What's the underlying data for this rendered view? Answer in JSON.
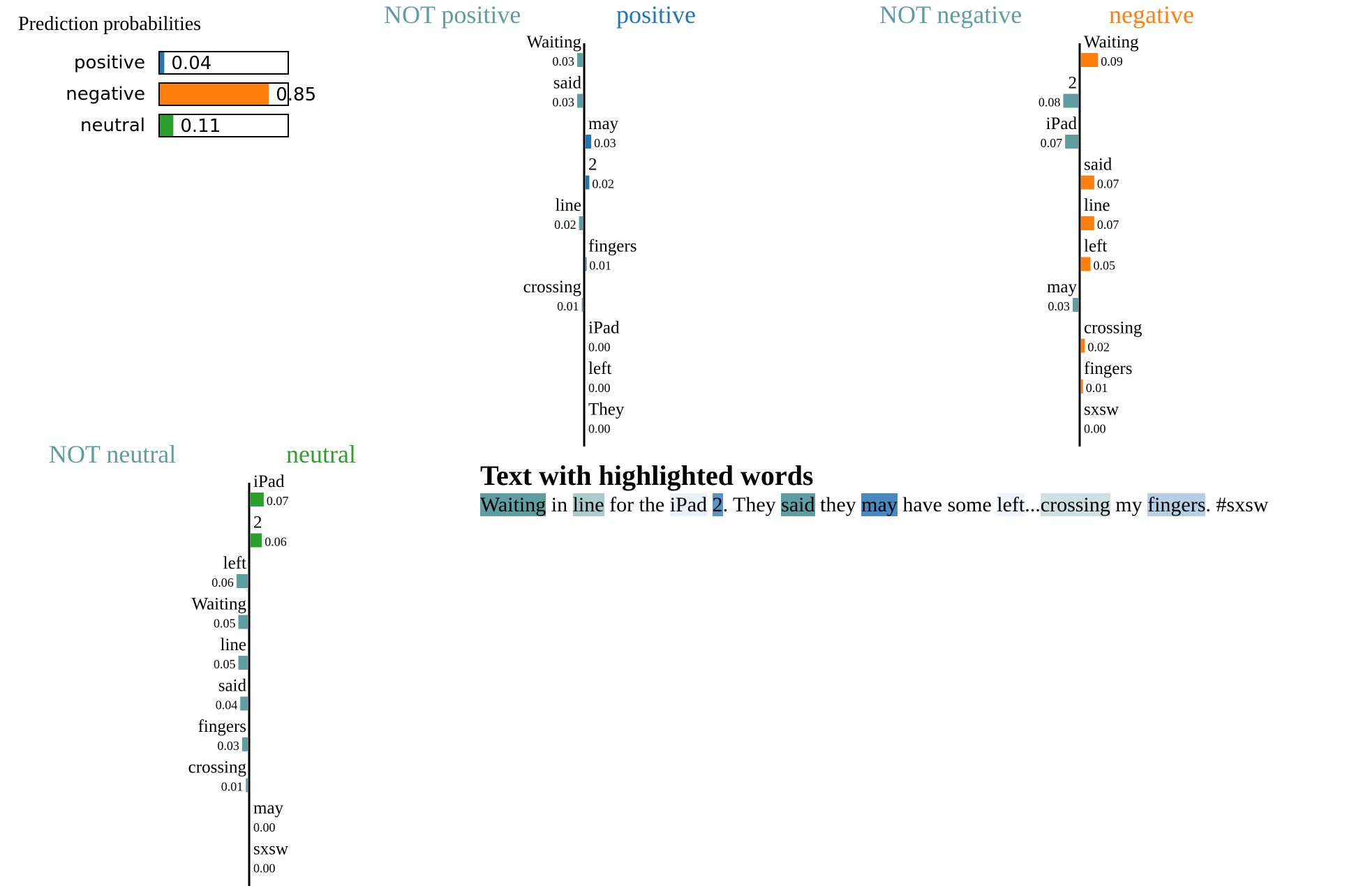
{
  "probabilities": {
    "title": "Prediction probabilities",
    "items": [
      {
        "label": "positive",
        "value": 0.04,
        "value_label": "0.04",
        "color": "#1f77b4"
      },
      {
        "label": "negative",
        "value": 0.85,
        "value_label": "0.85",
        "color": "#ff7f0e"
      },
      {
        "label": "neutral",
        "value": 0.11,
        "value_label": "0.11",
        "color": "#2ca02c"
      }
    ]
  },
  "chart_data": [
    {
      "type": "bar",
      "not_label": "NOT positive",
      "class_label": "positive",
      "not_color": "#5f9ea0",
      "class_color": "#1f77b4",
      "features": [
        {
          "word": "Waiting",
          "weight": -0.03,
          "label": "0.03"
        },
        {
          "word": "said",
          "weight": -0.03,
          "label": "0.03"
        },
        {
          "word": "may",
          "weight": 0.03,
          "label": "0.03"
        },
        {
          "word": "2",
          "weight": 0.02,
          "label": "0.02"
        },
        {
          "word": "line",
          "weight": -0.02,
          "label": "0.02"
        },
        {
          "word": "fingers",
          "weight": 0.005,
          "label": "0.01"
        },
        {
          "word": "crossing",
          "weight": -0.005,
          "label": "0.01"
        },
        {
          "word": "iPad",
          "weight": 0.0,
          "label": "0.00"
        },
        {
          "word": "left",
          "weight": 0.0,
          "label": "0.00"
        },
        {
          "word": "They",
          "weight": 0.0,
          "label": "0.00"
        }
      ]
    },
    {
      "type": "bar",
      "not_label": "NOT negative",
      "class_label": "negative",
      "not_color": "#5f9ea0",
      "class_color": "#ff7f0e",
      "features": [
        {
          "word": "Waiting",
          "weight": 0.09,
          "label": "0.09"
        },
        {
          "word": "2",
          "weight": -0.08,
          "label": "0.08"
        },
        {
          "word": "iPad",
          "weight": -0.07,
          "label": "0.07"
        },
        {
          "word": "said",
          "weight": 0.07,
          "label": "0.07"
        },
        {
          "word": "line",
          "weight": 0.07,
          "label": "0.07"
        },
        {
          "word": "left",
          "weight": 0.05,
          "label": "0.05"
        },
        {
          "word": "may",
          "weight": -0.03,
          "label": "0.03"
        },
        {
          "word": "crossing",
          "weight": 0.02,
          "label": "0.02"
        },
        {
          "word": "fingers",
          "weight": 0.01,
          "label": "0.01"
        },
        {
          "word": "sxsw",
          "weight": 0.0,
          "label": "0.00"
        }
      ]
    },
    {
      "type": "bar",
      "not_label": "NOT neutral",
      "class_label": "neutral",
      "not_color": "#5f9ea0",
      "class_color": "#2ca02c",
      "features": [
        {
          "word": "iPad",
          "weight": 0.07,
          "label": "0.07"
        },
        {
          "word": "2",
          "weight": 0.06,
          "label": "0.06"
        },
        {
          "word": "left",
          "weight": -0.06,
          "label": "0.06"
        },
        {
          "word": "Waiting",
          "weight": -0.05,
          "label": "0.05"
        },
        {
          "word": "line",
          "weight": -0.05,
          "label": "0.05"
        },
        {
          "word": "said",
          "weight": -0.04,
          "label": "0.04"
        },
        {
          "word": "fingers",
          "weight": -0.03,
          "label": "0.03"
        },
        {
          "word": "crossing",
          "weight": -0.01,
          "label": "0.01"
        },
        {
          "word": "may",
          "weight": 0.0,
          "label": "0.00"
        },
        {
          "word": "sxsw",
          "weight": 0.0,
          "label": "0.00"
        }
      ]
    }
  ],
  "highlighted": {
    "title": "Text with highlighted words",
    "tokens": [
      {
        "text": "Waiting",
        "bg": "#5f9ea0"
      },
      {
        "text": " in ",
        "bg": ""
      },
      {
        "text": "line",
        "bg": "#a9cbcc"
      },
      {
        "text": " for the ",
        "bg": ""
      },
      {
        "text": "iPad",
        "bg": "#e8f1f8"
      },
      {
        "text": " ",
        "bg": ""
      },
      {
        "text": "2",
        "bg": "#5a93c7"
      },
      {
        "text": ". They ",
        "bg": ""
      },
      {
        "text": "said",
        "bg": "#5f9ea0"
      },
      {
        "text": " they ",
        "bg": ""
      },
      {
        "text": "may",
        "bg": "#4a89c0"
      },
      {
        "text": " have some ",
        "bg": ""
      },
      {
        "text": "left",
        "bg": "#eef4fa"
      },
      {
        "text": "...",
        "bg": ""
      },
      {
        "text": "crossing",
        "bg": "#cfe0e0"
      },
      {
        "text": " my ",
        "bg": ""
      },
      {
        "text": "fingers",
        "bg": "#b6cfe4"
      },
      {
        "text": ". #sxsw",
        "bg": ""
      }
    ]
  }
}
